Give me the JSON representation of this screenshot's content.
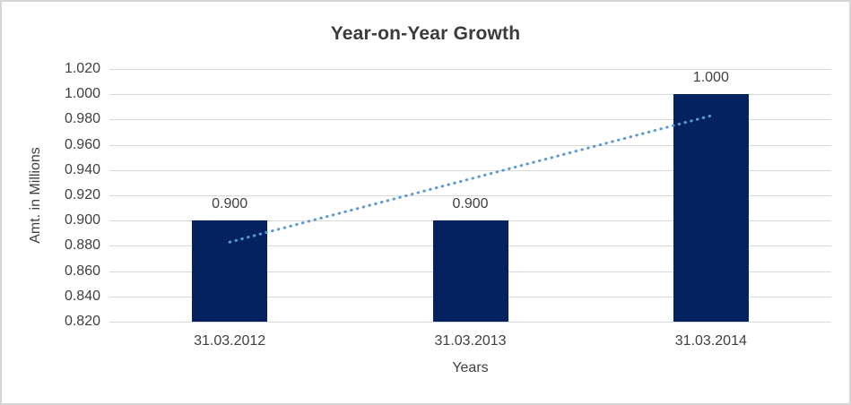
{
  "chart_data": {
    "type": "bar",
    "title": "Year-on-Year Growth",
    "xlabel": "Years",
    "ylabel": "Amt. in Millions",
    "categories": [
      "31.03.2012",
      "31.03.2013",
      "31.03.2014"
    ],
    "series": [
      {
        "name": "Amt. in Millions",
        "values": [
          0.9,
          0.9,
          1.0
        ]
      }
    ],
    "data_labels": [
      "0.900",
      "0.900",
      "1.000"
    ],
    "ylim": [
      0.82,
      1.02
    ],
    "ytick_step": 0.02,
    "ytick_labels": [
      "0.820",
      "0.840",
      "0.860",
      "0.880",
      "0.900",
      "0.920",
      "0.940",
      "0.960",
      "0.980",
      "1.000",
      "1.020"
    ],
    "grid": true,
    "legend": false,
    "colors": {
      "bar": "#04225f",
      "trendline": "#5b9bd5",
      "gridline": "#d9d9d9",
      "text": "#404040",
      "title_text": "#3b3b3b",
      "frame_border": "#d6d6d6",
      "background": "#ffffff"
    },
    "trendline": {
      "type": "linear",
      "style": "dotted",
      "start_value": 0.883,
      "end_value": 0.983
    }
  }
}
